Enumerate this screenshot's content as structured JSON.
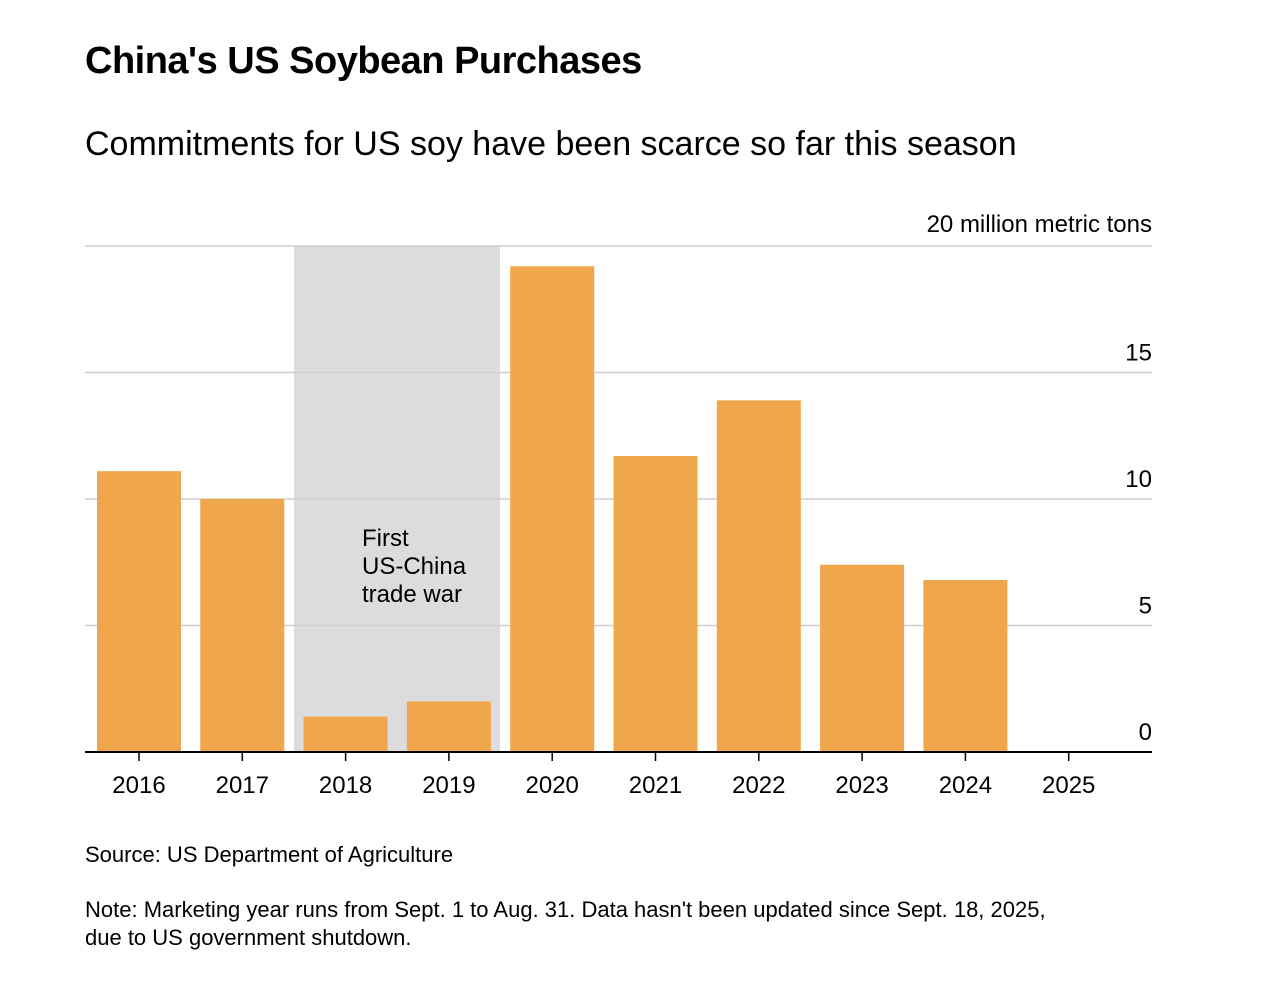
{
  "header": {
    "title": "China's US Soybean Purchases",
    "subtitle": "Commitments for US soy have been scarce so far this season"
  },
  "chart_data": {
    "type": "bar",
    "categories": [
      "2016",
      "2017",
      "2018",
      "2019",
      "2020",
      "2021",
      "2022",
      "2023",
      "2024",
      "2025"
    ],
    "values": [
      11.1,
      10.0,
      1.4,
      2.0,
      19.2,
      11.7,
      13.9,
      7.4,
      6.8,
      0
    ],
    "unit_label": "20 million metric tons",
    "ylim": [
      0,
      20
    ],
    "yticks": [
      {
        "value": 0,
        "label": "0"
      },
      {
        "value": 5,
        "label": "5"
      },
      {
        "value": 10,
        "label": "10"
      },
      {
        "value": 15,
        "label": "15"
      },
      {
        "value": 20,
        "label": ""
      }
    ],
    "shaded_region": {
      "from": "2018",
      "to": "2019",
      "label_lines": [
        "First",
        "US-China",
        "trade war"
      ]
    },
    "grid": true,
    "axis_position": "right",
    "colors": {
      "bar": "#F0A64A",
      "shade": "#DCDCDC",
      "grid": "#CFCFCF",
      "axis": "#000000"
    }
  },
  "footer": {
    "source": "Source: US Department of Agriculture",
    "note_line1": "Note: Marketing year runs from Sept. 1 to Aug. 31. Data hasn't been updated since Sept. 18, 2025,",
    "note_line2": "due to US government shutdown."
  }
}
